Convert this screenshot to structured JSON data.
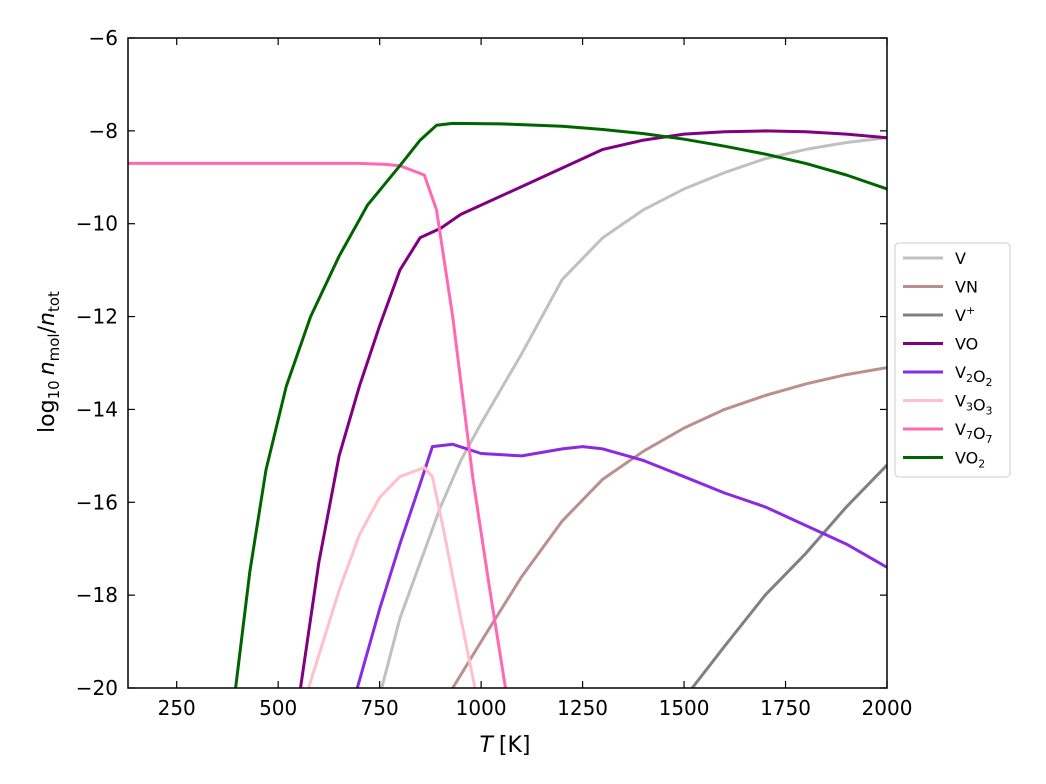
{
  "chart_data": {
    "type": "line",
    "xlabel_italic": "T",
    "xlabel_unit": "[K]",
    "ylabel_prefix": "log",
    "ylabel_log_sub": "10",
    "ylabel_n": "n",
    "ylabel_mol_sub": "mol",
    "ylabel_slash": "/",
    "ylabel_tot_sub": "tot",
    "xlim": [
      130,
      2000
    ],
    "ylim": [
      -20,
      -6
    ],
    "xticks": [
      250,
      500,
      750,
      1000,
      1250,
      1500,
      1750,
      2000
    ],
    "yticks": [
      -20,
      -18,
      -16,
      -14,
      -12,
      -10,
      -8,
      -6
    ],
    "xtick_labels": [
      "250",
      "500",
      "750",
      "1000",
      "1250",
      "1500",
      "1750",
      "2000"
    ],
    "ytick_labels": [
      "−20",
      "−18",
      "−16",
      "−14",
      "−12",
      "−10",
      "−8",
      "−6"
    ],
    "grid": false,
    "legend_position": "right, outside axes",
    "series": [
      {
        "name": "V",
        "legend": {
          "base": "V",
          "sup": "",
          "parts": []
        },
        "color": "#c0c0c0",
        "points": [
          [
            755,
            -20
          ],
          [
            800,
            -18.5
          ],
          [
            850,
            -17.3
          ],
          [
            900,
            -16.1
          ],
          [
            950,
            -15.1
          ],
          [
            1000,
            -14.3
          ],
          [
            1100,
            -12.8
          ],
          [
            1200,
            -11.2
          ],
          [
            1300,
            -10.3
          ],
          [
            1400,
            -9.7
          ],
          [
            1500,
            -9.25
          ],
          [
            1600,
            -8.9
          ],
          [
            1700,
            -8.6
          ],
          [
            1800,
            -8.4
          ],
          [
            1900,
            -8.25
          ],
          [
            2000,
            -8.15
          ]
        ]
      },
      {
        "name": "VN",
        "legend": {
          "base": "VN",
          "sup": "",
          "parts": []
        },
        "color": "#bc8f8f",
        "points": [
          [
            930,
            -20
          ],
          [
            1000,
            -19
          ],
          [
            1100,
            -17.6
          ],
          [
            1200,
            -16.4
          ],
          [
            1300,
            -15.5
          ],
          [
            1400,
            -14.9
          ],
          [
            1500,
            -14.4
          ],
          [
            1600,
            -14.0
          ],
          [
            1700,
            -13.7
          ],
          [
            1800,
            -13.45
          ],
          [
            1900,
            -13.25
          ],
          [
            2000,
            -13.1
          ]
        ]
      },
      {
        "name": "V+",
        "legend": {
          "base": "V",
          "sup": "+",
          "parts": []
        },
        "color": "#808080",
        "points": [
          [
            1520,
            -20
          ],
          [
            1600,
            -19.1
          ],
          [
            1700,
            -18.0
          ],
          [
            1800,
            -17.1
          ],
          [
            1900,
            -16.1
          ],
          [
            2000,
            -15.2
          ]
        ]
      },
      {
        "name": "VO",
        "legend": {
          "base": "VO",
          "sup": "",
          "parts": []
        },
        "color": "#800080",
        "points": [
          [
            555,
            -20
          ],
          [
            600,
            -17.3
          ],
          [
            650,
            -15.0
          ],
          [
            700,
            -13.5
          ],
          [
            750,
            -12.2
          ],
          [
            800,
            -11.0
          ],
          [
            850,
            -10.3
          ],
          [
            900,
            -10.1
          ],
          [
            950,
            -9.8
          ],
          [
            1000,
            -9.6
          ],
          [
            1100,
            -9.2
          ],
          [
            1200,
            -8.8
          ],
          [
            1300,
            -8.4
          ],
          [
            1400,
            -8.2
          ],
          [
            1500,
            -8.07
          ],
          [
            1600,
            -8.02
          ],
          [
            1700,
            -8.0
          ],
          [
            1800,
            -8.02
          ],
          [
            1900,
            -8.07
          ],
          [
            2000,
            -8.15
          ]
        ]
      },
      {
        "name": "V2O2",
        "legend": {
          "base": "",
          "sup": "",
          "parts": [
            [
              "V",
              "2"
            ],
            [
              "O",
              "2"
            ]
          ]
        },
        "color": "#8a2be2",
        "points": [
          [
            695,
            -20
          ],
          [
            750,
            -18.3
          ],
          [
            800,
            -16.9
          ],
          [
            850,
            -15.6
          ],
          [
            880,
            -14.8
          ],
          [
            930,
            -14.75
          ],
          [
            1000,
            -14.95
          ],
          [
            1100,
            -15.0
          ],
          [
            1200,
            -14.85
          ],
          [
            1250,
            -14.8
          ],
          [
            1300,
            -14.85
          ],
          [
            1400,
            -15.1
          ],
          [
            1500,
            -15.45
          ],
          [
            1600,
            -15.8
          ],
          [
            1700,
            -16.1
          ],
          [
            1800,
            -16.5
          ],
          [
            1900,
            -16.9
          ],
          [
            2000,
            -17.4
          ]
        ]
      },
      {
        "name": "V3O3",
        "legend": {
          "base": "",
          "sup": "",
          "parts": [
            [
              "V",
              "3"
            ],
            [
              "O",
              "3"
            ]
          ]
        },
        "color": "#ffc0cb",
        "points": [
          [
            575,
            -20
          ],
          [
            650,
            -17.9
          ],
          [
            700,
            -16.7
          ],
          [
            750,
            -15.9
          ],
          [
            800,
            -15.45
          ],
          [
            860,
            -15.25
          ],
          [
            880,
            -15.45
          ],
          [
            910,
            -16.7
          ],
          [
            950,
            -18.5
          ],
          [
            985,
            -20
          ]
        ]
      },
      {
        "name": "V7O7",
        "legend": {
          "base": "",
          "sup": "",
          "parts": [
            [
              "V",
              "7"
            ],
            [
              "O",
              "7"
            ]
          ]
        },
        "color": "#ff69b4",
        "points": [
          [
            130,
            -8.7
          ],
          [
            400,
            -8.7
          ],
          [
            600,
            -8.7
          ],
          [
            700,
            -8.7
          ],
          [
            760,
            -8.72
          ],
          [
            800,
            -8.75
          ],
          [
            860,
            -8.95
          ],
          [
            890,
            -9.7
          ],
          [
            930,
            -12.0
          ],
          [
            980,
            -15.5
          ],
          [
            1020,
            -17.8
          ],
          [
            1060,
            -20
          ]
        ]
      },
      {
        "name": "VO2",
        "legend": {
          "base": "",
          "sup": "",
          "parts": [
            [
              "VO",
              "2"
            ]
          ]
        },
        "color": "#006400",
        "points": [
          [
            395,
            -20
          ],
          [
            430,
            -17.5
          ],
          [
            470,
            -15.3
          ],
          [
            520,
            -13.5
          ],
          [
            580,
            -12.0
          ],
          [
            650,
            -10.7
          ],
          [
            720,
            -9.6
          ],
          [
            800,
            -8.75
          ],
          [
            850,
            -8.2
          ],
          [
            890,
            -7.88
          ],
          [
            930,
            -7.84
          ],
          [
            1050,
            -7.85
          ],
          [
            1200,
            -7.9
          ],
          [
            1300,
            -7.97
          ],
          [
            1400,
            -8.06
          ],
          [
            1500,
            -8.18
          ],
          [
            1600,
            -8.33
          ],
          [
            1700,
            -8.5
          ],
          [
            1800,
            -8.7
          ],
          [
            1900,
            -8.95
          ],
          [
            2000,
            -9.25
          ]
        ]
      }
    ]
  }
}
